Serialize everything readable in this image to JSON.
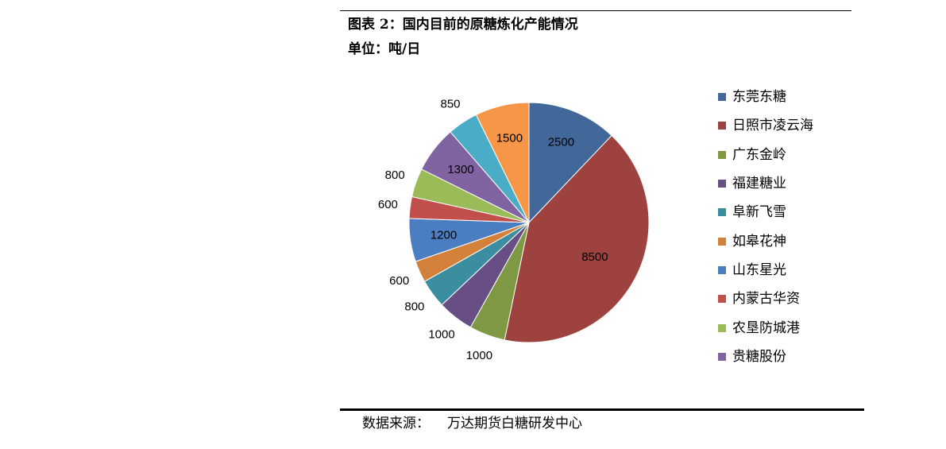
{
  "header": {
    "title": "图表 2：国内目前的原糖炼化产能情况",
    "unit": "单位：吨/日"
  },
  "footer": {
    "source_label": "数据来源：",
    "source_value": "万达期货白糖研发中心"
  },
  "chart_data": {
    "type": "pie",
    "title": "",
    "legend_position": "right",
    "start_angle": "12 o'clock, clockwise",
    "slices": [
      {
        "name": "东莞东糖",
        "value": 2500,
        "color": "#426899"
      },
      {
        "name": "日照市凌云海",
        "value": 8500,
        "color": "#9D423E"
      },
      {
        "name": "广东金岭",
        "value": 1000,
        "color": "#7E9843"
      },
      {
        "name": "福建糖业",
        "value": 1000,
        "color": "#674E85"
      },
      {
        "name": "阜新飞雪",
        "value": 800,
        "color": "#3B8DA0"
      },
      {
        "name": "如皋花神",
        "value": 600,
        "color": "#D2803A"
      },
      {
        "name": "山东星光",
        "value": 1200,
        "color": "#4A7EC1"
      },
      {
        "name": "内蒙古华资",
        "value": 600,
        "color": "#C1504D"
      },
      {
        "name": "农垦防城港",
        "value": 800,
        "color": "#9BBB59"
      },
      {
        "name": "贵糖股份",
        "value": 1300,
        "color": "#8064A2"
      },
      {
        "name": "",
        "value": 850,
        "color": "#4BACC6"
      },
      {
        "name": "",
        "value": 1500,
        "color": "#F79646"
      }
    ],
    "legend_entries": [
      "东莞东糖",
      "日照市凌云海",
      "广东金岭",
      "福建糖业",
      "阜新飞雪",
      "如皋花神",
      "山东星光",
      "内蒙古华资",
      "农垦防城港",
      "贵糖股份"
    ]
  }
}
